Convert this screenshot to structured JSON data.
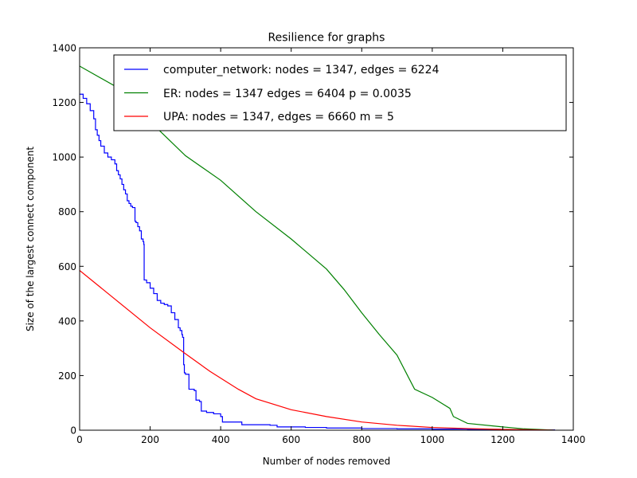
{
  "chart_data": {
    "type": "line",
    "title": "Resilience for graphs",
    "xlabel": "Number of nodes removed",
    "ylabel": "Size of the largest connect component",
    "xlim": [
      0,
      1400
    ],
    "ylim": [
      0,
      1400
    ],
    "xticks": [
      0,
      200,
      400,
      600,
      800,
      1000,
      1200,
      1400
    ],
    "yticks": [
      0,
      200,
      400,
      600,
      800,
      1000,
      1200,
      1400
    ],
    "grid": false,
    "legend_position": "top-right",
    "series": [
      {
        "name": "computer_network: nodes = 1347, edges = 6224",
        "color": "#0000ff",
        "step": true,
        "points": [
          [
            0,
            1230
          ],
          [
            10,
            1215
          ],
          [
            20,
            1195
          ],
          [
            30,
            1170
          ],
          [
            40,
            1140
          ],
          [
            45,
            1100
          ],
          [
            50,
            1080
          ],
          [
            55,
            1060
          ],
          [
            60,
            1040
          ],
          [
            70,
            1015
          ],
          [
            80,
            1000
          ],
          [
            90,
            990
          ],
          [
            100,
            975
          ],
          [
            105,
            950
          ],
          [
            110,
            935
          ],
          [
            115,
            920
          ],
          [
            120,
            900
          ],
          [
            125,
            880
          ],
          [
            130,
            865
          ],
          [
            135,
            840
          ],
          [
            140,
            830
          ],
          [
            145,
            820
          ],
          [
            150,
            815
          ],
          [
            155,
            815
          ],
          [
            157,
            765
          ],
          [
            160,
            760
          ],
          [
            165,
            745
          ],
          [
            170,
            730
          ],
          [
            175,
            700
          ],
          [
            180,
            690
          ],
          [
            182,
            680
          ],
          [
            183,
            550
          ],
          [
            190,
            540
          ],
          [
            200,
            520
          ],
          [
            210,
            500
          ],
          [
            220,
            475
          ],
          [
            230,
            465
          ],
          [
            240,
            460
          ],
          [
            250,
            455
          ],
          [
            260,
            430
          ],
          [
            270,
            405
          ],
          [
            280,
            375
          ],
          [
            285,
            365
          ],
          [
            290,
            350
          ],
          [
            292,
            340
          ],
          [
            295,
            240
          ],
          [
            297,
            210
          ],
          [
            300,
            205
          ],
          [
            308,
            205
          ],
          [
            310,
            150
          ],
          [
            325,
            145
          ],
          [
            330,
            110
          ],
          [
            340,
            105
          ],
          [
            345,
            70
          ],
          [
            360,
            65
          ],
          [
            380,
            60
          ],
          [
            400,
            50
          ],
          [
            405,
            30
          ],
          [
            460,
            20
          ],
          [
            540,
            18
          ],
          [
            560,
            12
          ],
          [
            640,
            10
          ],
          [
            700,
            8
          ],
          [
            800,
            6
          ],
          [
            900,
            5
          ],
          [
            1000,
            4
          ],
          [
            1100,
            3
          ],
          [
            1200,
            2
          ],
          [
            1300,
            1
          ],
          [
            1347,
            0
          ]
        ]
      },
      {
        "name": "ER: nodes = 1347 edges = 6404 p = 0.0035",
        "color": "#008000",
        "step": false,
        "points": [
          [
            0,
            1333
          ],
          [
            100,
            1260
          ],
          [
            200,
            1130
          ],
          [
            300,
            1005
          ],
          [
            400,
            915
          ],
          [
            500,
            800
          ],
          [
            600,
            700
          ],
          [
            700,
            590
          ],
          [
            750,
            515
          ],
          [
            800,
            430
          ],
          [
            850,
            350
          ],
          [
            900,
            275
          ],
          [
            930,
            200
          ],
          [
            950,
            150
          ],
          [
            1000,
            120
          ],
          [
            1050,
            80
          ],
          [
            1060,
            50
          ],
          [
            1100,
            25
          ],
          [
            1200,
            12
          ],
          [
            1260,
            5
          ],
          [
            1347,
            0
          ]
        ]
      },
      {
        "name": "UPA: nodes = 1347, edges = 6660 m = 5",
        "color": "#ff0000",
        "step": false,
        "points": [
          [
            0,
            585
          ],
          [
            100,
            480
          ],
          [
            200,
            375
          ],
          [
            300,
            280
          ],
          [
            370,
            215
          ],
          [
            450,
            150
          ],
          [
            500,
            115
          ],
          [
            600,
            75
          ],
          [
            700,
            50
          ],
          [
            800,
            30
          ],
          [
            900,
            18
          ],
          [
            1000,
            10
          ],
          [
            1100,
            6
          ],
          [
            1200,
            3
          ],
          [
            1300,
            1
          ],
          [
            1347,
            0
          ]
        ]
      }
    ]
  }
}
